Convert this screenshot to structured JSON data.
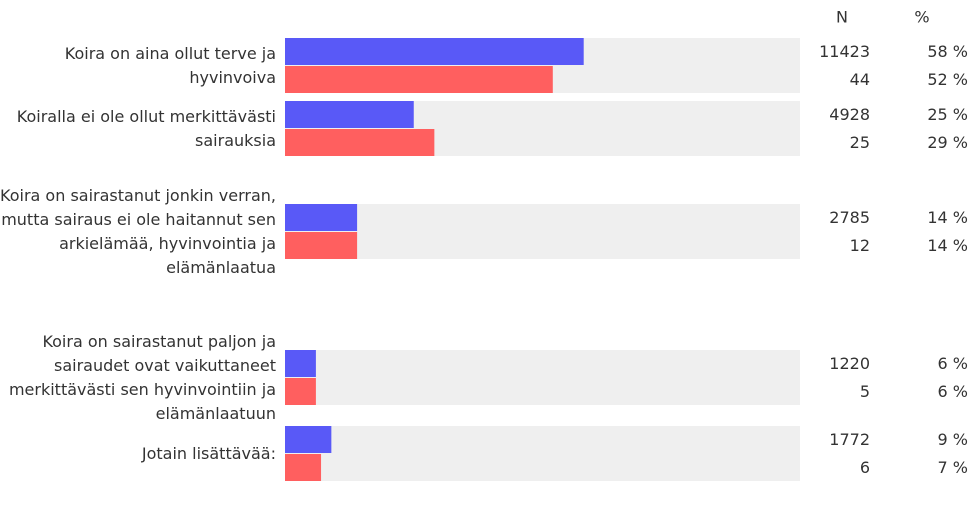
{
  "chart_data": {
    "type": "bar",
    "orientation": "horizontal",
    "column_headers": [
      "N",
      "%"
    ],
    "categories": [
      "Koira on aina ollut terve ja hyvinvoiva",
      "Koiralla ei ole ollut merkittävästi sairauksia",
      "Koira on sairastanut jonkin verran, mutta sairaus ei ole haitannut sen arkielämää, hyvinvointia ja elämänlaatua",
      "Koira on sairastanut paljon ja sairaudet ovat vaikuttaneet merkittävästi sen hyvinvointiin ja elämänlaatuun",
      "Jotain lisättävää:"
    ],
    "series": [
      {
        "color": "#5959f7",
        "values": [
          58,
          25,
          14,
          6,
          9
        ],
        "value_labels": [
          "58 %",
          "25 %",
          "14 %",
          "6 %",
          "9 %"
        ],
        "n": [
          11423,
          4928,
          2785,
          1220,
          1772
        ]
      },
      {
        "color": "#ff5f5f",
        "values": [
          52,
          29,
          14,
          6,
          7
        ],
        "value_labels": [
          "52 %",
          "29 %",
          "14 %",
          "6 %",
          "7 %"
        ],
        "n": [
          44,
          25,
          12,
          5,
          6
        ]
      }
    ],
    "xlim": [
      0,
      100
    ],
    "track_color": "#efefef"
  }
}
